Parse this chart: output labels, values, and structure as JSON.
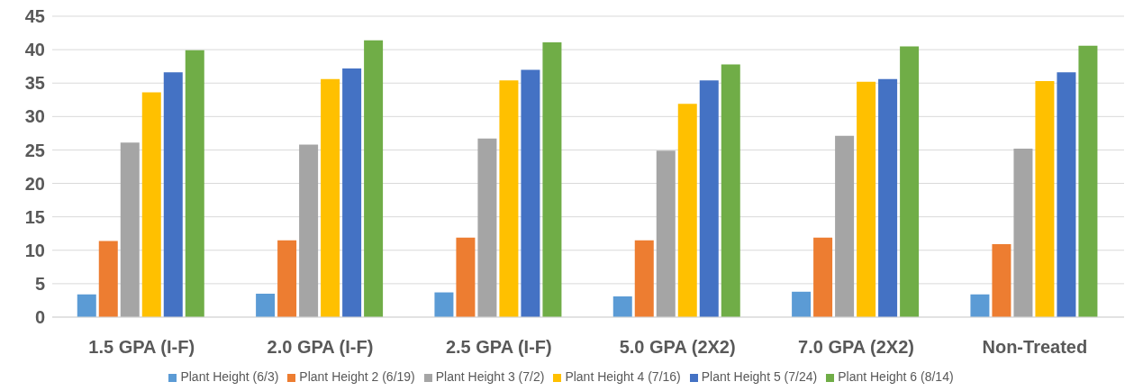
{
  "chart_data": {
    "type": "bar",
    "categories": [
      "1.5 GPA (I-F)",
      "2.0 GPA (I-F)",
      "2.5 GPA (I-F)",
      "5.0 GPA (2X2)",
      "7.0 GPA (2X2)",
      "Non-Treated"
    ],
    "series": [
      {
        "name": "Plant Height (6/3)",
        "color": "#5b9bd5",
        "values": [
          3.4,
          3.5,
          3.7,
          3.1,
          3.8,
          3.4
        ]
      },
      {
        "name": "Plant Height 2 (6/19)",
        "color": "#ed7d31",
        "values": [
          11.4,
          11.5,
          11.9,
          11.5,
          11.9,
          10.9
        ]
      },
      {
        "name": "Plant Height 3 (7/2)",
        "color": "#a5a5a5",
        "values": [
          26.1,
          25.8,
          26.7,
          24.9,
          27.1,
          25.2
        ]
      },
      {
        "name": "Plant Height 4 (7/16)",
        "color": "#ffc000",
        "values": [
          33.6,
          35.6,
          35.4,
          31.9,
          35.2,
          35.3
        ]
      },
      {
        "name": "Plant Height 5 (7/24)",
        "color": "#4472c4",
        "values": [
          36.6,
          37.2,
          37.0,
          35.4,
          35.6,
          36.6
        ]
      },
      {
        "name": "Plant Height 6 (8/14)",
        "color": "#70ad47",
        "values": [
          39.9,
          41.4,
          41.1,
          37.8,
          40.5,
          40.6
        ]
      }
    ],
    "ylim": [
      0,
      45
    ],
    "yticks": [
      0,
      5,
      10,
      15,
      20,
      25,
      30,
      35,
      40,
      45
    ],
    "grid": "y",
    "legend": "bottom"
  }
}
